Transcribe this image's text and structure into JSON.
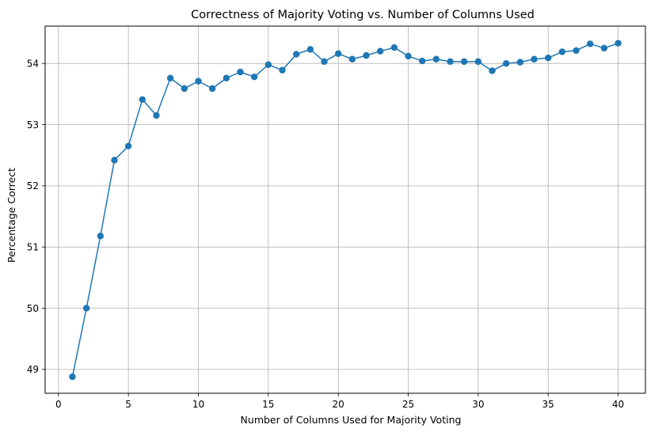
{
  "chart_data": {
    "type": "line",
    "title": "Correctness of Majority Voting vs. Number of Columns Used",
    "xlabel": "Number of Columns Used for Majority Voting",
    "ylabel": "Percentage Correct",
    "xlim": [
      -0.95,
      41.95
    ],
    "ylim": [
      48.61,
      54.61
    ],
    "xticks": [
      0,
      5,
      10,
      15,
      20,
      25,
      30,
      35,
      40
    ],
    "yticks": [
      49,
      50,
      51,
      52,
      53,
      54
    ],
    "grid": true,
    "series": [
      {
        "name": "Percentage Correct",
        "color": "#1f77b4",
        "marker": "circle",
        "x": [
          1,
          2,
          3,
          4,
          5,
          6,
          7,
          8,
          9,
          10,
          11,
          12,
          13,
          14,
          15,
          16,
          17,
          18,
          19,
          20,
          21,
          22,
          23,
          24,
          25,
          26,
          27,
          28,
          29,
          30,
          31,
          32,
          33,
          34,
          35,
          36,
          37,
          38,
          39,
          40
        ],
        "y": [
          48.88,
          50.0,
          51.18,
          52.42,
          52.65,
          53.41,
          53.15,
          53.76,
          53.59,
          53.71,
          53.59,
          53.76,
          53.86,
          53.78,
          53.98,
          53.89,
          54.15,
          54.23,
          54.03,
          54.16,
          54.07,
          54.13,
          54.2,
          54.26,
          54.12,
          54.04,
          54.07,
          54.03,
          54.03,
          54.03,
          53.88,
          54.0,
          54.02,
          54.07,
          54.09,
          54.19,
          54.21,
          54.32,
          54.25,
          54.33
        ]
      }
    ]
  }
}
